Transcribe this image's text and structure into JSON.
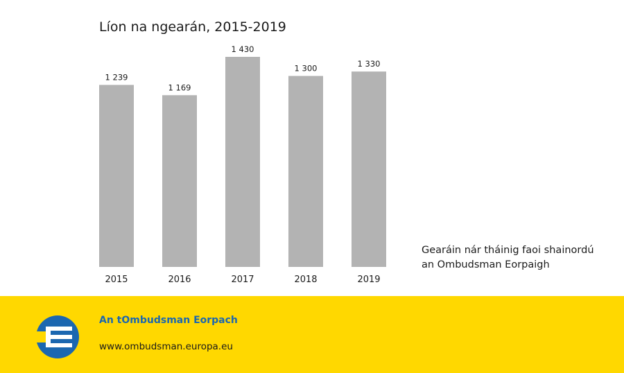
{
  "chart_data": {
    "type": "bar",
    "title": "Líon na ngearán, 2015-2019",
    "categories": [
      "2015",
      "2016",
      "2017",
      "2018",
      "2019"
    ],
    "values": [
      1239,
      1169,
      1430,
      1300,
      1330
    ],
    "value_labels": [
      "1 239",
      "1 169",
      "1 430",
      "1 300",
      "1 330"
    ],
    "series": [
      {
        "name": "Gearáin nár tháinig faoi shainordú an Ombudsman Eorpaigh",
        "values": [
          1239,
          1169,
          1430,
          1300,
          1330
        ]
      }
    ],
    "ylim": [
      0,
      1430
    ],
    "grid": false,
    "legend_placement": "right",
    "bar_color": "#b3b3b3"
  },
  "legend": {
    "line1": "Gearáin nár tháinig faoi shainordú",
    "line2": "an Ombudsman Eorpaigh"
  },
  "footer": {
    "org_name": "An tOmbudsman Eorpach",
    "url": "www.ombudsman.europa.eu",
    "logo_icon": "ombudsman-logo-icon",
    "background_color": "#ffd800",
    "brand_color": "#1b67b0"
  }
}
